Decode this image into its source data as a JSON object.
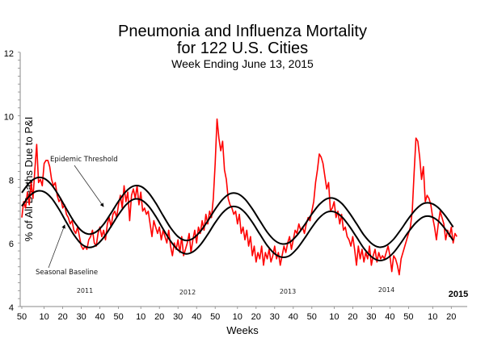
{
  "chart_data": {
    "type": "line",
    "title": "Pneumonia and Influenza Mortality",
    "title_line2": "for 122 U.S. Cities",
    "subtitle": "Week Ending  June 13, 2015",
    "xlabel": "Weeks",
    "ylabel": "% of All Deaths Due to P&I",
    "ylim": [
      4,
      12
    ],
    "y_ticks": [
      "4",
      "6",
      "8",
      "10",
      "12"
    ],
    "x_tick_labels": [
      "50",
      "10",
      "20",
      "30",
      "40",
      "50",
      "10",
      "20",
      "30",
      "40",
      "50",
      "10",
      "20",
      "30",
      "40",
      "50",
      "10",
      "20",
      "30",
      "40",
      "50",
      "10",
      "20"
    ],
    "year_labels": [
      "2011",
      "2012",
      "2013",
      "2014",
      "2015"
    ],
    "grid": false,
    "annotations": {
      "threshold": "Epidemic Threshold",
      "baseline": "Seasonal Baseline"
    },
    "colors": {
      "observed": "#ff0000",
      "baseline": "#000000",
      "threshold": "#000000"
    },
    "x_start": "week 50",
    "series": [
      {
        "key": "observed",
        "interval_weeks": 1,
        "values": [
          6.8,
          7.3,
          7.1,
          7.6,
          7.2,
          7.9,
          7.4,
          8.3,
          9.1,
          7.9,
          8.0,
          7.8,
          8.5,
          8.6,
          8.6,
          8.4,
          8.0,
          7.8,
          7.9,
          7.5,
          7.3,
          7.4,
          7.1,
          7.2,
          6.9,
          6.8,
          6.6,
          6.7,
          6.4,
          6.3,
          6.5,
          6.2,
          5.9,
          5.8,
          5.9,
          5.8,
          6.1,
          6.2,
          6.4,
          6.0,
          5.9,
          6.3,
          6.5,
          6.2,
          6.4,
          6.1,
          6.6,
          6.8,
          6.5,
          6.9,
          7.0,
          6.8,
          7.2,
          7.5,
          7.1,
          7.8,
          7.3,
          7.6,
          6.7,
          7.5,
          7.7,
          7.4,
          7.8,
          7.2,
          7.6,
          7.0,
          7.1,
          6.9,
          7.0,
          6.6,
          6.2,
          6.7,
          6.5,
          6.3,
          6.5,
          6.1,
          6.4,
          6.2,
          6.0,
          6.4,
          5.9,
          5.6,
          6.0,
          5.8,
          6.1,
          5.7,
          6.2,
          5.6,
          5.8,
          6.0,
          6.3,
          5.7,
          6.1,
          6.4,
          6.0,
          6.5,
          6.3,
          6.7,
          6.4,
          6.9,
          6.6,
          7.0,
          6.8,
          7.4,
          8.5,
          9.9,
          9.3,
          8.9,
          9.2,
          8.3,
          8.0,
          7.4,
          7.2,
          7.1,
          6.9,
          7.0,
          6.6,
          6.9,
          6.3,
          6.5,
          6.1,
          6.4,
          5.9,
          6.2,
          5.6,
          5.9,
          5.4,
          5.7,
          5.5,
          5.9,
          5.3,
          5.7,
          5.5,
          5.8,
          5.4,
          5.6,
          5.9,
          5.5,
          5.7,
          5.3,
          5.6,
          5.9,
          5.7,
          6.0,
          6.2,
          5.8,
          6.1,
          6.4,
          6.3,
          6.6,
          6.4,
          6.5,
          6.3,
          6.6,
          6.8,
          6.7,
          7.0,
          7.3,
          7.9,
          8.3,
          8.8,
          8.7,
          8.5,
          8.1,
          7.7,
          7.9,
          7.0,
          7.1,
          7.3,
          6.8,
          7.0,
          6.6,
          6.9,
          6.4,
          6.5,
          6.2,
          6.1,
          5.9,
          6.2,
          5.8,
          5.3,
          5.9,
          5.5,
          5.8,
          5.4,
          5.7,
          5.5,
          5.9,
          5.3,
          5.6,
          5.8,
          5.4,
          5.7,
          5.5,
          5.6,
          5.5,
          5.7,
          5.9,
          5.6,
          5.1,
          5.6,
          5.5,
          5.3,
          5.0,
          5.5,
          5.7,
          5.9,
          6.1,
          6.3,
          6.5,
          7.0,
          8.2,
          9.3,
          9.2,
          8.7,
          8.0,
          8.4,
          7.3,
          7.5,
          7.4,
          7.2,
          6.8,
          6.5,
          6.1,
          6.6,
          7.0,
          6.8,
          6.6,
          6.1,
          6.4,
          6.2,
          6.5,
          6.0,
          6.3,
          6.2
        ]
      },
      {
        "key": "baseline",
        "name": "Seasonal Baseline",
        "interval_weeks": 4,
        "values": [
          7.16,
          7.47,
          7.63,
          7.61,
          7.41,
          7.06,
          6.65,
          6.26,
          5.97,
          5.86,
          5.93,
          6.17,
          6.52,
          6.89,
          7.2,
          7.37,
          7.36,
          7.17,
          6.84,
          6.44,
          6.06,
          5.78,
          5.66,
          5.72,
          5.94,
          6.27,
          6.64,
          6.95,
          7.13,
          7.13,
          6.96,
          6.65,
          6.28,
          5.92,
          5.66,
          5.55,
          5.6,
          5.82,
          6.14,
          6.49,
          6.79,
          6.97,
          6.98,
          6.83,
          6.54,
          6.19,
          5.83,
          5.57,
          5.45,
          5.5,
          5.7,
          6.01,
          6.35,
          6.64,
          6.82,
          6.83,
          6.69,
          6.42,
          6.08
        ]
      },
      {
        "key": "threshold",
        "name": "Epidemic Threshold",
        "interval_weeks": 4,
        "values": [
          7.58,
          7.89,
          8.05,
          8.03,
          7.83,
          7.48,
          7.07,
          6.68,
          6.39,
          6.28,
          6.35,
          6.59,
          6.94,
          7.31,
          7.62,
          7.79,
          7.78,
          7.59,
          7.26,
          6.86,
          6.48,
          6.2,
          6.08,
          6.14,
          6.36,
          6.69,
          7.06,
          7.37,
          7.55,
          7.55,
          7.38,
          7.07,
          6.7,
          6.34,
          6.08,
          5.97,
          6.02,
          6.24,
          6.56,
          6.91,
          7.21,
          7.39,
          7.4,
          7.25,
          6.96,
          6.61,
          6.25,
          5.99,
          5.87,
          5.92,
          6.12,
          6.43,
          6.77,
          7.06,
          7.24,
          7.25,
          7.11,
          6.84,
          6.5
        ]
      }
    ]
  }
}
